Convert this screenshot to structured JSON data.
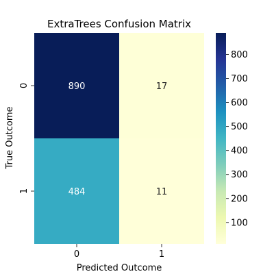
{
  "chart_data": {
    "type": "heatmap",
    "title": "ExtraTrees Confusion Matrix",
    "xlabel": "Predicted Outcome",
    "ylabel": "True Outcome",
    "x_categories": [
      "0",
      "1"
    ],
    "y_categories": [
      "0",
      "1"
    ],
    "values": [
      [
        890,
        17
      ],
      [
        484,
        11
      ]
    ],
    "colormap": "YlGnBu",
    "colorbar": {
      "range": [
        11,
        890
      ],
      "ticks": [
        100,
        200,
        300,
        400,
        500,
        600,
        700,
        800
      ]
    },
    "grid": false,
    "legend": "colorbar-right"
  }
}
